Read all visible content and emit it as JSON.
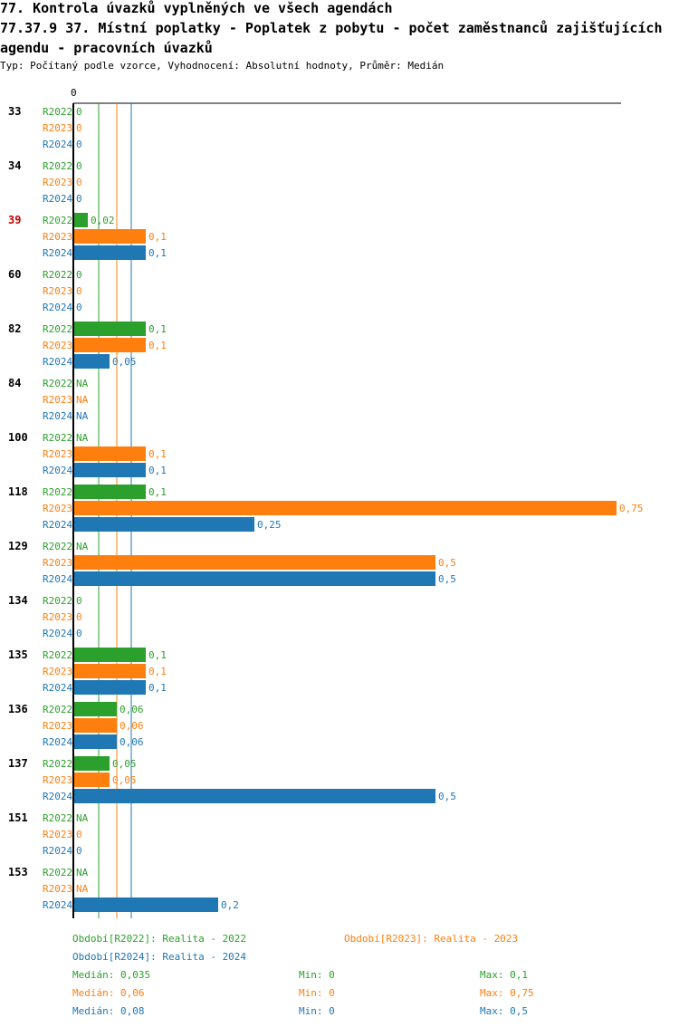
{
  "title_line1": "77. Kontrola úvazků vyplněných ve všech agendách",
  "title_line2": "77.37.9 37. Místní poplatky - Poplatek z pobytu - počet zaměstnanců zajišťujících",
  "title_line3": " agendu - pracovních úvazků",
  "subtitle": "Typ: Počítaný podle vzorce, Vyhodnocení: Absolutní hodnoty, Průměr: Medián",
  "colors": {
    "R2022": "#2ca02c",
    "R2023": "#ff7f0e",
    "R2024": "#1f77b4",
    "highlight": "#cc0000"
  },
  "chart_data": {
    "type": "bar",
    "orientation": "horizontal",
    "axis_zero_label": "0",
    "xlim": [
      0,
      0.75
    ],
    "series_names": [
      "R2022",
      "R2023",
      "R2024"
    ],
    "categories": [
      {
        "label": "33",
        "highlight": false,
        "values": [
          0,
          0,
          0
        ],
        "labels": [
          "0",
          "0",
          "0"
        ]
      },
      {
        "label": "34",
        "highlight": false,
        "values": [
          0,
          0,
          0
        ],
        "labels": [
          "0",
          "0",
          "0"
        ]
      },
      {
        "label": "39",
        "highlight": true,
        "values": [
          0.02,
          0.1,
          0.1
        ],
        "labels": [
          "0,02",
          "0,1",
          "0,1"
        ]
      },
      {
        "label": "60",
        "highlight": false,
        "values": [
          0,
          0,
          0
        ],
        "labels": [
          "0",
          "0",
          "0"
        ]
      },
      {
        "label": "82",
        "highlight": false,
        "values": [
          0.1,
          0.1,
          0.05
        ],
        "labels": [
          "0,1",
          "0,1",
          "0,05"
        ]
      },
      {
        "label": "84",
        "highlight": false,
        "values": [
          null,
          null,
          null
        ],
        "labels": [
          "NA",
          "NA",
          "NA"
        ]
      },
      {
        "label": "100",
        "highlight": false,
        "values": [
          null,
          0.1,
          0.1
        ],
        "labels": [
          "NA",
          "0,1",
          "0,1"
        ]
      },
      {
        "label": "118",
        "highlight": false,
        "values": [
          0.1,
          0.75,
          0.25
        ],
        "labels": [
          "0,1",
          "0,75",
          "0,25"
        ]
      },
      {
        "label": "129",
        "highlight": false,
        "values": [
          null,
          0.5,
          0.5
        ],
        "labels": [
          "NA",
          "0,5",
          "0,5"
        ]
      },
      {
        "label": "134",
        "highlight": false,
        "values": [
          0,
          0,
          0
        ],
        "labels": [
          "0",
          "0",
          "0"
        ]
      },
      {
        "label": "135",
        "highlight": false,
        "values": [
          0.1,
          0.1,
          0.1
        ],
        "labels": [
          "0,1",
          "0,1",
          "0,1"
        ]
      },
      {
        "label": "136",
        "highlight": false,
        "values": [
          0.06,
          0.06,
          0.06
        ],
        "labels": [
          "0,06",
          "0,06",
          "0,06"
        ]
      },
      {
        "label": "137",
        "highlight": false,
        "values": [
          0.05,
          0.05,
          0.5
        ],
        "labels": [
          "0,05",
          "0,05",
          "0,5"
        ]
      },
      {
        "label": "151",
        "highlight": false,
        "values": [
          null,
          0,
          0
        ],
        "labels": [
          "NA",
          "0",
          "0"
        ]
      },
      {
        "label": "153",
        "highlight": false,
        "values": [
          null,
          null,
          0.2
        ],
        "labels": [
          "NA",
          "NA",
          "0,2"
        ]
      }
    ],
    "medians": [
      0.035,
      0.06,
      0.08
    ],
    "legend": {
      "r2022": "Období[R2022]: Realita - 2022",
      "r2023": "Období[R2023]: Realita - 2023",
      "r2024": "Období[R2024]: Realita - 2024"
    },
    "stats": [
      {
        "median": "Medián: 0,035",
        "min": "Min: 0",
        "max": "Max: 0,1"
      },
      {
        "median": "Medián: 0,06",
        "min": "Min: 0",
        "max": "Max: 0,75"
      },
      {
        "median": "Medián: 0,08",
        "min": "Min: 0",
        "max": "Max: 0,5"
      }
    ]
  }
}
